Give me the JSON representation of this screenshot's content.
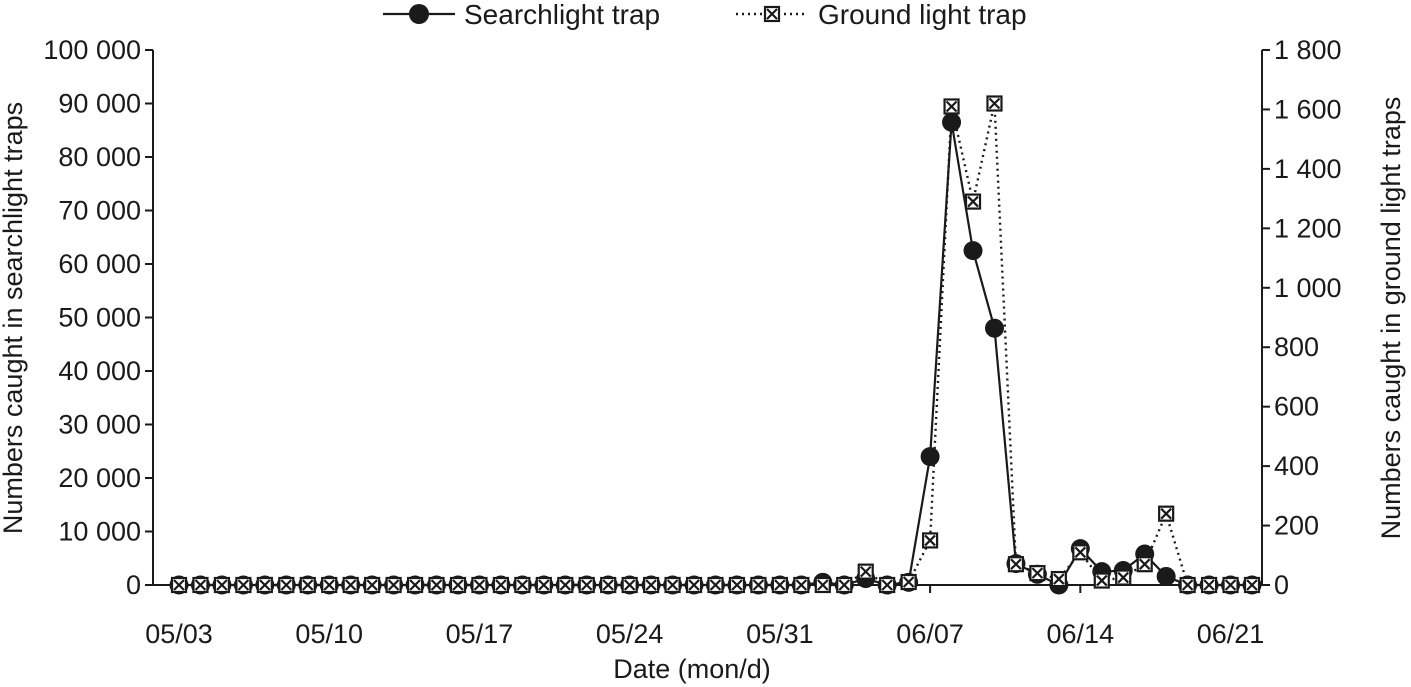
{
  "chart_data": {
    "type": "line",
    "xlabel": "Date (mon/d)",
    "ylabel_left": "Numbers caught in searchlight traps",
    "ylabel_right": "Numbers caught in ground light traps",
    "x_ticks": [
      "05/03",
      "05/10",
      "05/17",
      "05/24",
      "05/31",
      "06/07",
      "06/14",
      "06/21"
    ],
    "x": [
      "05/03",
      "05/04",
      "05/05",
      "05/06",
      "05/07",
      "05/08",
      "05/09",
      "05/10",
      "05/11",
      "05/12",
      "05/13",
      "05/14",
      "05/15",
      "05/16",
      "05/17",
      "05/18",
      "05/19",
      "05/20",
      "05/21",
      "05/22",
      "05/23",
      "05/24",
      "05/25",
      "05/26",
      "05/27",
      "05/28",
      "05/29",
      "05/30",
      "05/31",
      "06/01",
      "06/02",
      "06/03",
      "06/04",
      "06/05",
      "06/06",
      "06/07",
      "06/08",
      "06/09",
      "06/10",
      "06/11",
      "06/12",
      "06/13",
      "06/14",
      "06/15",
      "06/16",
      "06/17",
      "06/18",
      "06/19",
      "06/20",
      "06/21",
      "06/22"
    ],
    "y_left_ticks": [
      "0",
      "10 000",
      "20 000",
      "30 000",
      "40 000",
      "50 000",
      "60 000",
      "70 000",
      "80 000",
      "90 000",
      "100 000"
    ],
    "y_left_range": [
      0,
      100000
    ],
    "y_right_ticks": [
      "0",
      "200",
      "400",
      "600",
      "800",
      "1 000",
      "1 200",
      "1 400",
      "1 600",
      "1 800"
    ],
    "y_right_range": [
      0,
      1800
    ],
    "legend_position": "top-center",
    "series": [
      {
        "name": "Searchlight trap",
        "axis": "left",
        "marker": "filled-circle",
        "line": "solid",
        "values": [
          0,
          0,
          0,
          0,
          0,
          0,
          0,
          0,
          0,
          0,
          0,
          0,
          0,
          0,
          0,
          0,
          0,
          0,
          0,
          0,
          0,
          0,
          0,
          0,
          0,
          0,
          0,
          0,
          0,
          0,
          500,
          0,
          1200,
          0,
          500,
          24000,
          86500,
          62500,
          48000,
          4000,
          2000,
          0,
          6800,
          2500,
          2700,
          5800,
          1600,
          0,
          0,
          0,
          0
        ]
      },
      {
        "name": "Ground light trap",
        "axis": "right",
        "marker": "crossed-square",
        "line": "dotted",
        "values": [
          0,
          0,
          0,
          0,
          0,
          0,
          0,
          0,
          0,
          0,
          0,
          0,
          0,
          0,
          0,
          0,
          0,
          0,
          0,
          0,
          0,
          0,
          0,
          0,
          0,
          0,
          0,
          0,
          0,
          0,
          0,
          0,
          45,
          0,
          10,
          150,
          1610,
          1290,
          1620,
          70,
          40,
          20,
          110,
          15,
          25,
          70,
          240,
          0,
          0,
          0,
          0
        ]
      }
    ]
  }
}
